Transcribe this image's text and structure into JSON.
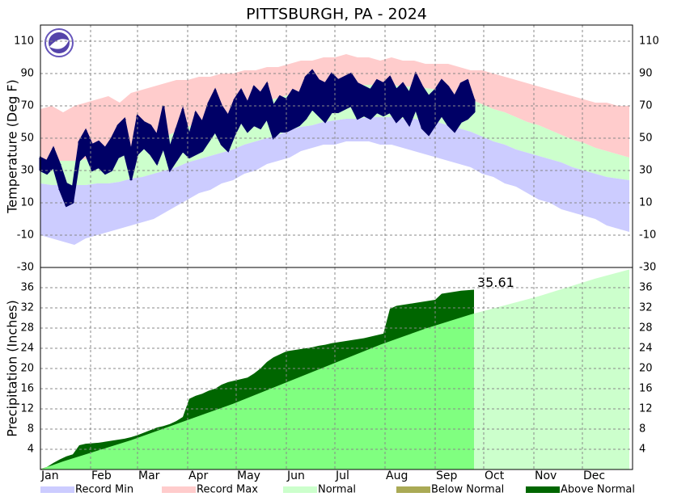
{
  "chart_data": [
    {
      "type": "temperature",
      "title": "PITTSBURGH, PA - 2024",
      "y_label": "Temperature (Deg F)",
      "xlim": [
        1,
        367
      ],
      "ylim": [
        -30,
        120
      ],
      "yticks": [
        -30,
        -10,
        10,
        30,
        50,
        70,
        90,
        110
      ],
      "grid": true,
      "xticks": [
        {
          "value": 1,
          "label": "Jan"
        },
        {
          "value": 32,
          "label": "Feb"
        },
        {
          "value": 61,
          "label": "Mar"
        },
        {
          "value": 92,
          "label": "Apr"
        },
        {
          "value": 122,
          "label": "May"
        },
        {
          "value": 153,
          "label": "Jun"
        },
        {
          "value": 183,
          "label": "Jul"
        },
        {
          "value": 214,
          "label": "Aug"
        },
        {
          "value": 245,
          "label": "Sep"
        },
        {
          "value": 275,
          "label": "Oct"
        },
        {
          "value": 306,
          "label": "Nov"
        },
        {
          "value": 336,
          "label": "Dec"
        }
      ],
      "x": [
        1,
        8,
        15,
        22,
        29,
        36,
        43,
        50,
        57,
        64,
        71,
        78,
        85,
        92,
        99,
        106,
        113,
        120,
        127,
        134,
        141,
        148,
        155,
        162,
        169,
        176,
        183,
        190,
        197,
        204,
        211,
        218,
        225,
        232,
        239,
        246,
        253,
        260,
        267,
        274,
        281,
        288,
        295,
        302,
        309,
        316,
        323,
        330,
        337,
        344,
        351,
        358,
        365
      ],
      "record_max": [
        68,
        70,
        66,
        70,
        72,
        74,
        76,
        72,
        78,
        80,
        82,
        84,
        86,
        86,
        88,
        88,
        90,
        90,
        92,
        92,
        94,
        94,
        96,
        98,
        98,
        100,
        100,
        102,
        100,
        100,
        98,
        100,
        98,
        98,
        96,
        96,
        96,
        94,
        92,
        92,
        90,
        88,
        86,
        84,
        82,
        80,
        78,
        76,
        74,
        72,
        72,
        70,
        70
      ],
      "normal_high": [
        37,
        36,
        36,
        36,
        37,
        38,
        39,
        41,
        43,
        45,
        48,
        51,
        54,
        57,
        60,
        62,
        64,
        66,
        68,
        71,
        73,
        75,
        77,
        79,
        80,
        81,
        82,
        83,
        83,
        83,
        83,
        83,
        82,
        82,
        81,
        80,
        78,
        76,
        74,
        71,
        68,
        66,
        63,
        60,
        58,
        55,
        52,
        49,
        47,
        44,
        42,
        40,
        38
      ],
      "normal_low": [
        22,
        21,
        21,
        21,
        21,
        22,
        22,
        23,
        25,
        26,
        28,
        30,
        32,
        35,
        37,
        39,
        41,
        43,
        46,
        48,
        50,
        52,
        55,
        57,
        58,
        60,
        61,
        62,
        62,
        63,
        63,
        63,
        62,
        62,
        61,
        60,
        58,
        56,
        54,
        51,
        48,
        46,
        43,
        41,
        39,
        37,
        35,
        32,
        30,
        28,
        26,
        25,
        24
      ],
      "record_min": [
        -10,
        -12,
        -14,
        -16,
        -12,
        -10,
        -8,
        -6,
        -4,
        -2,
        0,
        4,
        8,
        12,
        16,
        18,
        22,
        24,
        28,
        30,
        34,
        36,
        38,
        42,
        44,
        46,
        46,
        48,
        48,
        48,
        46,
        46,
        44,
        42,
        40,
        38,
        36,
        34,
        32,
        28,
        26,
        22,
        20,
        16,
        12,
        10,
        6,
        4,
        2,
        0,
        -4,
        -6,
        -8
      ],
      "x_observed": [
        1,
        5,
        9,
        13,
        17,
        21,
        25,
        29,
        33,
        37,
        41,
        45,
        49,
        53,
        57,
        61,
        65,
        69,
        73,
        77,
        81,
        85,
        89,
        93,
        97,
        101,
        105,
        109,
        113,
        117,
        121,
        125,
        129,
        133,
        137,
        141,
        145,
        149,
        153,
        157,
        161,
        165,
        169,
        173,
        177,
        181,
        185,
        189,
        193,
        197,
        201,
        205,
        209,
        213,
        217,
        221,
        225,
        229,
        233,
        237,
        241,
        245,
        249,
        253,
        257,
        261,
        265,
        269
      ],
      "observed_color": "#000066",
      "observed_high": [
        38,
        36,
        44,
        34,
        22,
        20,
        48,
        55,
        46,
        48,
        44,
        50,
        58,
        62,
        42,
        64,
        60,
        58,
        52,
        70,
        44,
        56,
        68,
        52,
        66,
        60,
        72,
        80,
        70,
        64,
        74,
        80,
        72,
        82,
        78,
        84,
        70,
        76,
        74,
        80,
        78,
        88,
        92,
        86,
        84,
        90,
        86,
        88,
        90,
        84,
        82,
        80,
        86,
        84,
        88,
        80,
        84,
        78,
        90,
        82,
        76,
        80,
        86,
        82,
        76,
        84,
        86,
        74
      ],
      "observed_low": [
        30,
        28,
        32,
        18,
        8,
        10,
        36,
        40,
        30,
        32,
        28,
        30,
        38,
        40,
        24,
        40,
        44,
        40,
        34,
        44,
        30,
        36,
        42,
        38,
        40,
        42,
        48,
        54,
        46,
        42,
        52,
        60,
        54,
        58,
        56,
        62,
        50,
        54,
        54,
        56,
        58,
        62,
        68,
        64,
        60,
        66,
        66,
        68,
        70,
        62,
        64,
        62,
        66,
        64,
        66,
        60,
        64,
        58,
        68,
        56,
        52,
        58,
        64,
        58,
        54,
        60,
        62,
        66
      ]
    },
    {
      "type": "precipitation",
      "y_label": "Precipitation (Inches)",
      "xlim": [
        1,
        367
      ],
      "ylim": [
        0,
        40
      ],
      "yticks": [
        4,
        8,
        12,
        16,
        20,
        24,
        28,
        32,
        36
      ],
      "grid": true,
      "x_normal": [
        1,
        8,
        15,
        22,
        29,
        36,
        43,
        50,
        57,
        64,
        71,
        78,
        85,
        92,
        99,
        106,
        113,
        120,
        127,
        134,
        141,
        148,
        155,
        162,
        169,
        176,
        183,
        190,
        197,
        204,
        211,
        218,
        225,
        232,
        239,
        246,
        253,
        260,
        267,
        274,
        281,
        288,
        295,
        302,
        309,
        316,
        323,
        330,
        337,
        344,
        351,
        358,
        365
      ],
      "normal": [
        0.1,
        0.8,
        1.6,
        2.3,
        3.0,
        3.7,
        4.4,
        5.1,
        5.8,
        6.6,
        7.4,
        8.2,
        9.0,
        9.8,
        10.6,
        11.4,
        12.2,
        13.0,
        13.9,
        14.8,
        15.7,
        16.6,
        17.5,
        18.4,
        19.3,
        20.2,
        21.1,
        22.0,
        22.9,
        23.8,
        24.7,
        25.5,
        26.3,
        27.1,
        27.9,
        28.6,
        29.3,
        30.0,
        30.7,
        31.3,
        31.9,
        32.5,
        33.1,
        33.7,
        34.3,
        35.0,
        35.7,
        36.4,
        37.1,
        37.8,
        38.4,
        39.0,
        39.6
      ],
      "normal_color": "#80ff80",
      "x_actual": [
        1,
        5,
        9,
        13,
        17,
        21,
        25,
        29,
        33,
        37,
        41,
        45,
        49,
        53,
        57,
        61,
        65,
        69,
        73,
        77,
        81,
        85,
        89,
        93,
        97,
        101,
        105,
        109,
        113,
        117,
        121,
        125,
        129,
        133,
        137,
        141,
        145,
        149,
        153,
        157,
        161,
        165,
        169,
        173,
        177,
        181,
        185,
        189,
        193,
        197,
        201,
        205,
        209,
        213,
        217,
        221,
        225,
        229,
        233,
        237,
        241,
        245,
        249,
        253,
        257,
        261,
        265,
        269
      ],
      "actual": [
        0.05,
        0.5,
        1.3,
        2.0,
        2.6,
        3.0,
        4.8,
        5.1,
        5.2,
        5.3,
        5.5,
        5.7,
        5.9,
        6.1,
        6.4,
        6.8,
        7.3,
        7.8,
        8.3,
        8.6,
        9.0,
        9.6,
        10.4,
        14.0,
        14.6,
        15.0,
        15.6,
        16.0,
        16.8,
        17.3,
        17.6,
        17.9,
        18.2,
        19.0,
        20.0,
        21.3,
        22.2,
        22.8,
        23.4,
        23.6,
        23.8,
        24.0,
        24.2,
        24.5,
        24.7,
        25.0,
        25.2,
        25.4,
        25.6,
        25.8,
        26.0,
        26.3,
        26.6,
        26.9,
        31.8,
        32.4,
        32.6,
        32.8,
        33.0,
        33.2,
        33.4,
        33.6,
        34.8,
        35.0,
        35.2,
        35.4,
        35.5,
        35.61
      ]
    }
  ],
  "legend": [
    {
      "label": "Record Min",
      "color": "#ccccff"
    },
    {
      "label": "Record Max",
      "color": "#ffcccc"
    },
    {
      "label": "Normal",
      "color": "#ccffcc"
    },
    {
      "label": "Below Normal",
      "color": "#aaaa55"
    },
    {
      "label": "Above Normal",
      "color": "#006600"
    }
  ]
}
